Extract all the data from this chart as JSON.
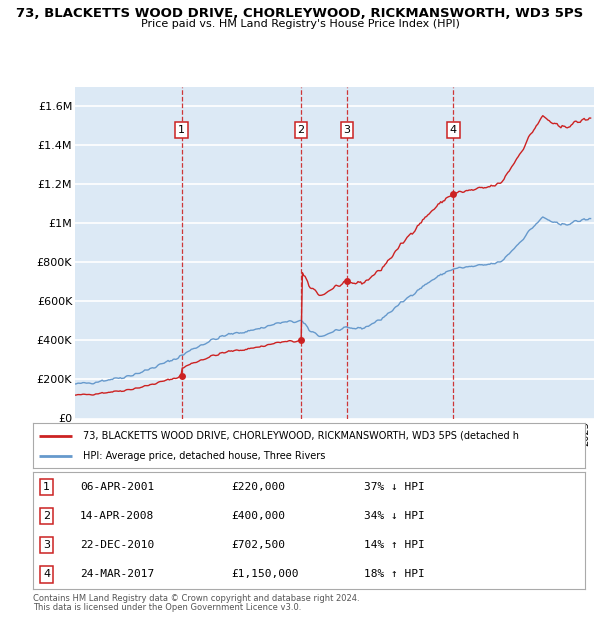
{
  "title": "73, BLACKETTS WOOD DRIVE, CHORLEYWOOD, RICKMANSWORTH, WD3 5PS",
  "subtitle": "Price paid vs. HM Land Registry's House Price Index (HPI)",
  "ylabel_ticks": [
    "£0",
    "£200K",
    "£400K",
    "£600K",
    "£800K",
    "£1M",
    "£1.2M",
    "£1.4M",
    "£1.6M"
  ],
  "ytick_values": [
    0,
    200000,
    400000,
    600000,
    800000,
    1000000,
    1200000,
    1400000,
    1600000
  ],
  "ylim": [
    0,
    1700000
  ],
  "xlim_start": 1995.0,
  "xlim_end": 2025.5,
  "bg_color": "#dce9f5",
  "grid_color": "#ffffff",
  "hpi_color": "#6699cc",
  "price_color": "#cc2222",
  "sale_vline_color": "#cc2222",
  "transactions": [
    {
      "num": 1,
      "date": "06-APR-2001",
      "year": 2001.27,
      "price": 220000,
      "pct": "37%",
      "dir": "↓"
    },
    {
      "num": 2,
      "date": "14-APR-2008",
      "year": 2008.29,
      "price": 400000,
      "pct": "34%",
      "dir": "↓"
    },
    {
      "num": 3,
      "date": "22-DEC-2010",
      "year": 2010.98,
      "price": 702500,
      "pct": "14%",
      "dir": "↑"
    },
    {
      "num": 4,
      "date": "24-MAR-2017",
      "year": 2017.23,
      "price": 1150000,
      "pct": "18%",
      "dir": "↑"
    }
  ],
  "legend_property_label": "73, BLACKETTS WOOD DRIVE, CHORLEYWOOD, RICKMANSWORTH, WD3 5PS (detached h",
  "legend_hpi_label": "HPI: Average price, detached house, Three Rivers",
  "footer1": "Contains HM Land Registry data © Crown copyright and database right 2024.",
  "footer2": "This data is licensed under the Open Government Licence v3.0.",
  "hpi_anchors": [
    [
      1995.0,
      175000
    ],
    [
      1996.0,
      185000
    ],
    [
      1997.0,
      200000
    ],
    [
      1998.0,
      215000
    ],
    [
      1999.0,
      240000
    ],
    [
      2000.0,
      275000
    ],
    [
      2001.0,
      310000
    ],
    [
      2002.0,
      360000
    ],
    [
      2003.0,
      400000
    ],
    [
      2004.0,
      430000
    ],
    [
      2005.0,
      445000
    ],
    [
      2006.0,
      465000
    ],
    [
      2007.0,
      490000
    ],
    [
      2008.3,
      500000
    ],
    [
      2008.8,
      450000
    ],
    [
      2009.5,
      420000
    ],
    [
      2010.0,
      440000
    ],
    [
      2010.5,
      455000
    ],
    [
      2011.0,
      460000
    ],
    [
      2012.0,
      465000
    ],
    [
      2013.0,
      510000
    ],
    [
      2014.0,
      580000
    ],
    [
      2015.0,
      650000
    ],
    [
      2016.0,
      710000
    ],
    [
      2017.0,
      760000
    ],
    [
      2017.5,
      770000
    ],
    [
      2018.0,
      775000
    ],
    [
      2019.0,
      785000
    ],
    [
      2020.0,
      800000
    ],
    [
      2021.0,
      890000
    ],
    [
      2022.0,
      990000
    ],
    [
      2022.5,
      1030000
    ],
    [
      2023.0,
      1010000
    ],
    [
      2023.5,
      990000
    ],
    [
      2024.0,
      1000000
    ],
    [
      2024.5,
      1010000
    ],
    [
      2025.0,
      1020000
    ]
  ]
}
